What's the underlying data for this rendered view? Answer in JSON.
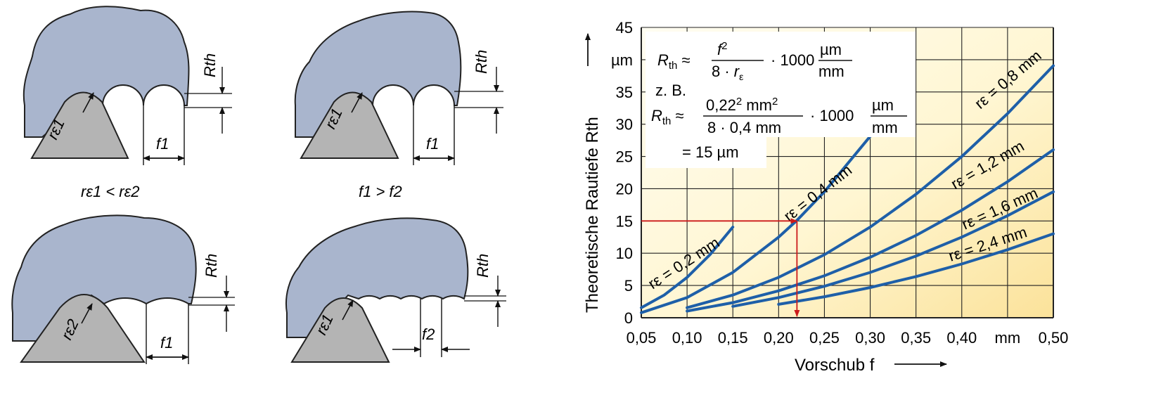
{
  "diagrams": {
    "d1": {
      "radius_label": "rε1",
      "height_label": "Rth",
      "feed_label": "f1"
    },
    "d2": {
      "radius_label": "rε1",
      "height_label": "Rth",
      "feed_label": "f1"
    },
    "d3": {
      "radius_label": "rε2",
      "height_label": "Rth",
      "feed_label": "f1"
    },
    "d4": {
      "radius_label": "rε1",
      "height_label": "Rth",
      "feed_label": "f2"
    },
    "caption_left": "rε1 < rε2",
    "caption_right": "f1 > f2"
  },
  "formula": {
    "line1": "Rth ≈ f² / (8 · rε) · 1000 µm/mm",
    "example_label": "z. B.",
    "line2": "Rth ≈ 0,22² mm² / (8 · 0,4 mm) · 1000 µm/mm",
    "result": "= 15 µm"
  },
  "colors": {
    "workpiece": "#a9b5cd",
    "tool": "#b4b4b4",
    "curve": "#1e5fa8",
    "marker": "#cc1a1a",
    "bg_light": "#fffbe6",
    "bg_warm": "#fbe6a0"
  },
  "chart_data": {
    "type": "line",
    "title": "",
    "xlabel": "Vorschub f",
    "ylabel": "Theoretische Rautiefe Rth",
    "x_unit": "mm",
    "y_unit": "µm",
    "xlim": [
      0.05,
      0.5
    ],
    "ylim": [
      0,
      45
    ],
    "x_ticks": [
      "0,05",
      "0,10",
      "0,15",
      "0,20",
      "0,25",
      "0,30",
      "0,35",
      "0,40",
      "mm",
      "0,50"
    ],
    "y_ticks": [
      "0",
      "5",
      "10",
      "15",
      "20",
      "25",
      "30",
      "35",
      "µm",
      "45"
    ],
    "grid": true,
    "series": [
      {
        "name": "rε = 0,2 mm",
        "x": [
          0.05,
          0.075,
          0.1,
          0.125,
          0.15
        ],
        "y": [
          1.56,
          3.52,
          6.25,
          9.77,
          14.06
        ]
      },
      {
        "name": "rε = 0,4 mm",
        "x": [
          0.05,
          0.1,
          0.15,
          0.2,
          0.22,
          0.25,
          0.3
        ],
        "y": [
          0.78,
          3.13,
          7.03,
          12.5,
          15.1,
          19.53,
          28.13
        ]
      },
      {
        "name": "rε = 0,8 mm",
        "x": [
          0.1,
          0.15,
          0.2,
          0.25,
          0.3,
          0.35,
          0.4,
          0.45,
          0.5
        ],
        "y": [
          1.56,
          3.52,
          6.25,
          9.77,
          14.06,
          19.14,
          25.0,
          31.64,
          39.06
        ]
      },
      {
        "name": "rε = 1,2 mm",
        "x": [
          0.1,
          0.15,
          0.2,
          0.25,
          0.3,
          0.35,
          0.4,
          0.45,
          0.5
        ],
        "y": [
          1.04,
          2.34,
          4.17,
          6.51,
          9.38,
          12.76,
          16.67,
          21.09,
          26.04
        ]
      },
      {
        "name": "rε = 1,6 mm",
        "x": [
          0.15,
          0.2,
          0.25,
          0.3,
          0.35,
          0.4,
          0.45,
          0.5
        ],
        "y": [
          1.76,
          3.13,
          4.88,
          7.03,
          9.57,
          12.5,
          15.82,
          19.53
        ]
      },
      {
        "name": "rε = 2,4 mm",
        "x": [
          0.2,
          0.25,
          0.3,
          0.35,
          0.4,
          0.45,
          0.5
        ],
        "y": [
          2.08,
          3.26,
          4.69,
          6.38,
          8.33,
          10.55,
          13.02
        ]
      }
    ],
    "annotations": [
      {
        "type": "arrow",
        "from": [
          0.05,
          15
        ],
        "to": [
          0.22,
          15
        ]
      },
      {
        "type": "arrow",
        "from": [
          0.22,
          15
        ],
        "to": [
          0.22,
          0
        ]
      }
    ]
  }
}
